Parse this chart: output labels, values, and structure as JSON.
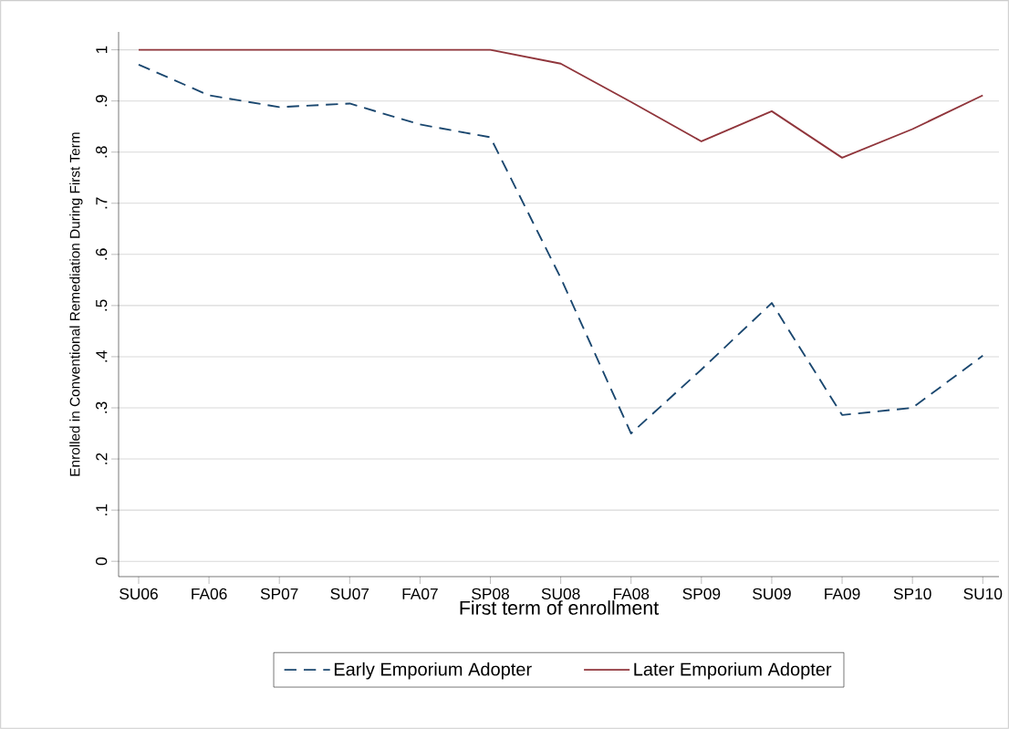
{
  "chart_data": {
    "type": "line",
    "xlabel": "First term of enrollment",
    "ylabel": "Enrolled in Conventional Remediation During First Term",
    "categories": [
      "SU06",
      "FA06",
      "SP07",
      "SU07",
      "FA07",
      "SP08",
      "SU08",
      "FA08",
      "SP09",
      "SU09",
      "FA09",
      "SP10",
      "SU10"
    ],
    "series": [
      {
        "name": "Early Emporium Adopter",
        "color": "#1a476f",
        "line_style": "dashed",
        "values": [
          0.971,
          0.911,
          0.888,
          0.895,
          0.854,
          0.829,
          0.554,
          0.25,
          0.375,
          0.505,
          0.286,
          0.3,
          0.402
        ]
      },
      {
        "name": "Later Emporium Adopter",
        "color": "#90353b",
        "line_style": "solid",
        "values": [
          1,
          1,
          1,
          1,
          1,
          1,
          0.973,
          0.898,
          0.821,
          0.88,
          0.789,
          0.845,
          0.911
        ]
      }
    ],
    "ylim": [
      -0.03,
      1.035
    ],
    "yticks": [
      {
        "value": 0,
        "label": "0"
      },
      {
        "value": 0.1,
        "label": ".1"
      },
      {
        "value": 0.2,
        "label": ".2"
      },
      {
        "value": 0.3,
        "label": ".3"
      },
      {
        "value": 0.4,
        "label": ".4"
      },
      {
        "value": 0.5,
        "label": ".5"
      },
      {
        "value": 0.6,
        "label": ".6"
      },
      {
        "value": 0.7,
        "label": ".7"
      },
      {
        "value": 0.8,
        "label": ".8"
      },
      {
        "value": 0.9,
        "label": ".9"
      },
      {
        "value": 1,
        "label": "1"
      }
    ],
    "grid": "y",
    "legend": "bottom",
    "marker": "none"
  }
}
